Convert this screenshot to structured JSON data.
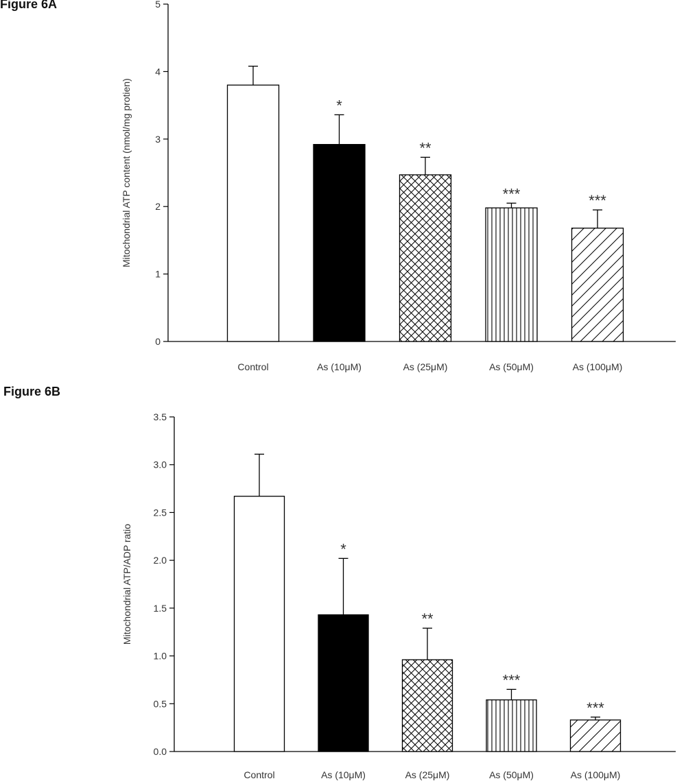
{
  "figures": [
    {
      "label": "Figure 6A",
      "chart_data": {
        "type": "bar",
        "ylabel": "Mitochondrial ATP content (nmol/mg protien)",
        "ylim": [
          0,
          5
        ],
        "yticks": [
          "0",
          "1",
          "2",
          "3",
          "4",
          "5"
        ],
        "categories": [
          "Control",
          "As (10μM)",
          "As (25μM)",
          "As (50μM)",
          "As (100μM)"
        ],
        "values": [
          3.8,
          2.92,
          2.47,
          1.98,
          1.68
        ],
        "errors": [
          0.28,
          0.44,
          0.26,
          0.07,
          0.27
        ],
        "significance": [
          "",
          "*",
          "**",
          "***",
          "***"
        ],
        "fills": [
          "white",
          "black",
          "crosshatch",
          "vertical",
          "diagonal"
        ]
      }
    },
    {
      "label": "Figure 6B",
      "chart_data": {
        "type": "bar",
        "ylabel": "Mitochondrial ATP/ADP ratio",
        "ylim": [
          0,
          3.5
        ],
        "yticks": [
          "0.0",
          "0.5",
          "1.0",
          "1.5",
          "2.0",
          "2.5",
          "3.0",
          "3.5"
        ],
        "categories": [
          "Control",
          "As (10μM)",
          "As (25μM)",
          "As (50μM)",
          "As (100μM)"
        ],
        "values": [
          2.67,
          1.43,
          0.96,
          0.54,
          0.33
        ],
        "errors": [
          0.44,
          0.59,
          0.33,
          0.11,
          0.03
        ],
        "significance": [
          "",
          "*",
          "**",
          "***",
          "***"
        ],
        "fills": [
          "white",
          "black",
          "crosshatch",
          "vertical",
          "diagonal"
        ]
      }
    }
  ]
}
